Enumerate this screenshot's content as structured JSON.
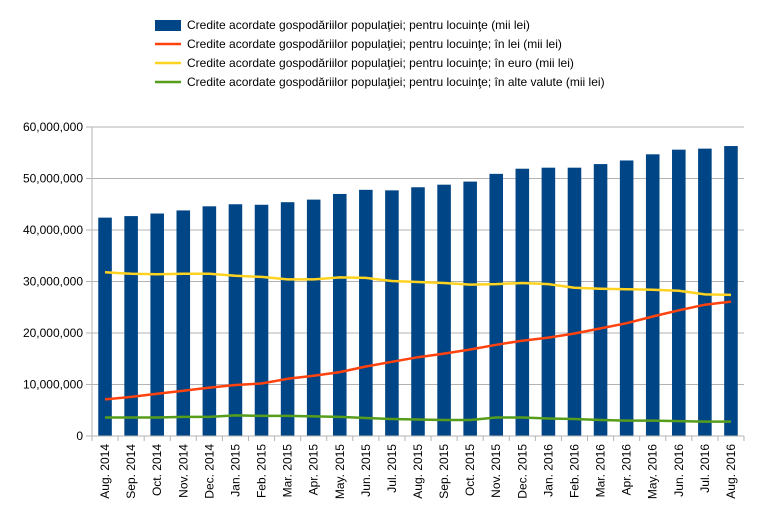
{
  "chart_data": {
    "type": "bar",
    "categories": [
      "Aug. 2014",
      "Sep. 2014",
      "Oct. 2014",
      "Nov. 2014",
      "Dec. 2014",
      "Jan. 2015",
      "Feb. 2015",
      "Mar. 2015",
      "Apr. 2015",
      "May. 2015",
      "Jun. 2015",
      "Jul. 2015",
      "Aug. 2015",
      "Sep. 2015",
      "Oct. 2015",
      "Nov. 2015",
      "Dec. 2015",
      "Jan. 2016",
      "Feb. 2016",
      "Mar. 2016",
      "Apr. 2016",
      "May. 2016",
      "Jun. 2016",
      "Jul. 2016",
      "Aug. 2016"
    ],
    "series": [
      {
        "name": "Credite acordate gospodăriilor populaţiei; pentru locuinţe (mii lei)",
        "kind": "bar",
        "color": "#004586",
        "values": [
          42400000,
          42700000,
          43200000,
          43800000,
          44600000,
          45000000,
          44900000,
          45400000,
          45900000,
          47000000,
          47800000,
          47700000,
          48300000,
          48800000,
          49400000,
          50900000,
          51900000,
          52100000,
          52100000,
          52800000,
          53500000,
          54700000,
          55600000,
          55800000,
          56300000
        ]
      },
      {
        "name": "Credite acordate gospodăriilor populaţiei; pentru locuinţe; în lei (mii lei)",
        "kind": "line",
        "color": "#ff420e",
        "values": [
          7100000,
          7600000,
          8200000,
          8800000,
          9400000,
          9900000,
          10200000,
          11100000,
          11700000,
          12400000,
          13500000,
          14400000,
          15300000,
          16000000,
          16800000,
          17700000,
          18500000,
          19100000,
          19900000,
          20900000,
          21900000,
          23200000,
          24400000,
          25500000,
          26100000
        ]
      },
      {
        "name": "Credite acordate gospodăriilor populaţiei; pentru locuinţe; în euro (mii lei)",
        "kind": "line",
        "color": "#ffd320",
        "values": [
          31800000,
          31500000,
          31400000,
          31500000,
          31500000,
          31100000,
          30900000,
          30400000,
          30400000,
          30800000,
          30700000,
          30100000,
          29900000,
          29700000,
          29400000,
          29500000,
          29700000,
          29500000,
          28800000,
          28600000,
          28500000,
          28400000,
          28200000,
          27500000,
          27400000
        ]
      },
      {
        "name": "Credite acordate gospodăriilor populaţiei; pentru locuinţe; în alte valute (mii lei)",
        "kind": "line",
        "color": "#579d1c",
        "values": [
          3600000,
          3600000,
          3600000,
          3700000,
          3700000,
          4000000,
          3900000,
          3900000,
          3800000,
          3700000,
          3500000,
          3300000,
          3200000,
          3100000,
          3100000,
          3600000,
          3600000,
          3400000,
          3300000,
          3100000,
          3000000,
          3000000,
          2900000,
          2800000,
          2800000
        ]
      }
    ],
    "y_ticks": [
      "0",
      "10,000,000",
      "20,000,000",
      "30,000,000",
      "40,000,000",
      "50,000,000",
      "60,000,000"
    ],
    "ylim": [
      0,
      60000000
    ],
    "grid": true,
    "legend_position": "top"
  }
}
